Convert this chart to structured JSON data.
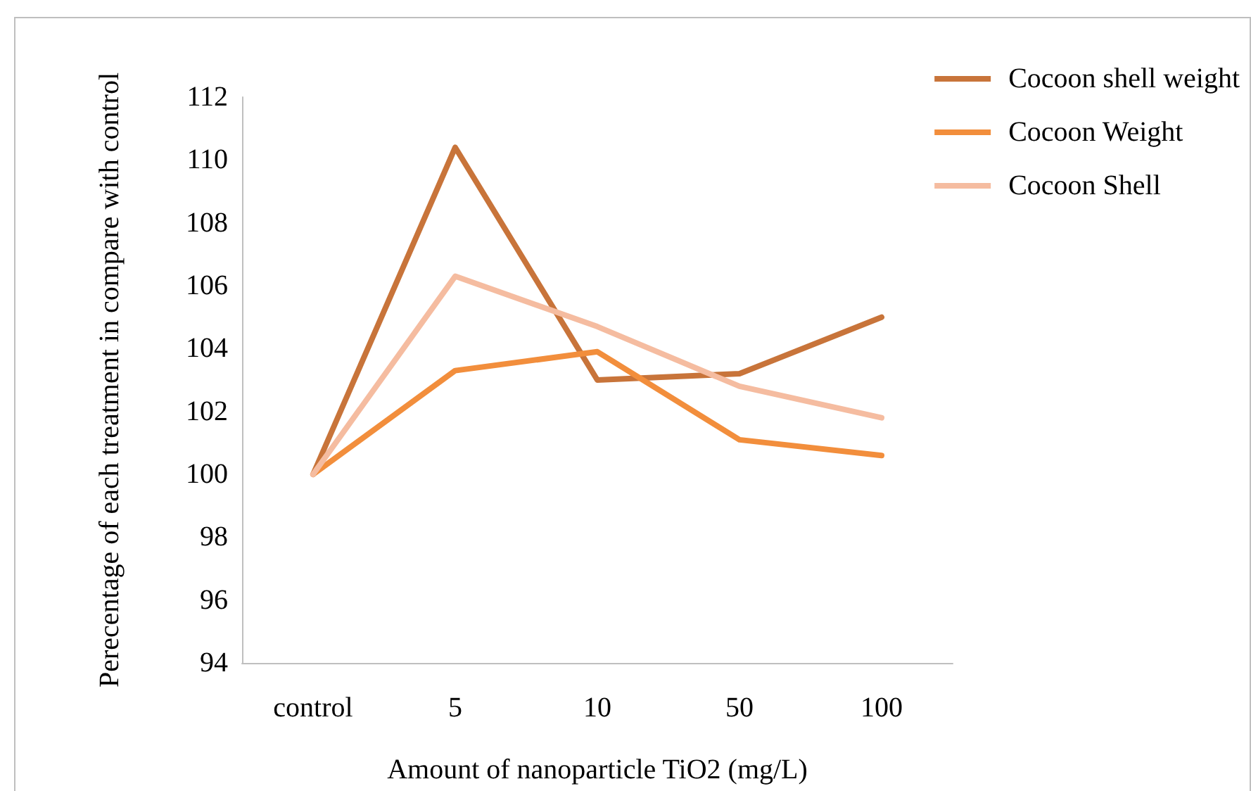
{
  "chart_data": {
    "type": "line",
    "xlabel": "Amount of nanoparticle TiO2 (mg/L)",
    "ylabel": "Perecentage of each treatment in compare with control",
    "categories": [
      "control",
      "5",
      "10",
      "50",
      "100"
    ],
    "series": [
      {
        "name": "Cocoon shell weight",
        "color": "#c8743a",
        "values": [
          100,
          110.4,
          103.0,
          103.2,
          105.0
        ]
      },
      {
        "name": "Cocoon Weight",
        "color": "#f28e3c",
        "values": [
          100,
          103.3,
          103.9,
          101.1,
          100.6
        ]
      },
      {
        "name": "Cocoon Shell",
        "color": "#f5bca0",
        "values": [
          100,
          106.3,
          104.7,
          102.8,
          101.8
        ]
      }
    ],
    "ylim": [
      94,
      112
    ],
    "yticks": [
      94,
      96,
      98,
      100,
      102,
      104,
      106,
      108,
      110,
      112
    ],
    "grid": false,
    "legend": "top right",
    "marker": "none",
    "line_style": "solid"
  }
}
